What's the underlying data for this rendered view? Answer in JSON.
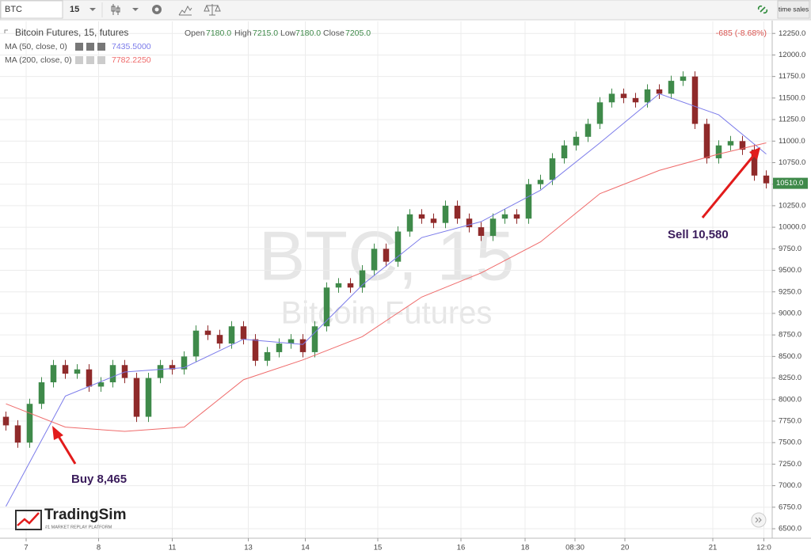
{
  "toolbar": {
    "symbol": "BTC",
    "interval": "15",
    "time_sales": "time sales"
  },
  "branding": {
    "name": "TradingSim",
    "tagline": "#1 MARKET REPLAY PLATFORM"
  },
  "chart_data": {
    "type": "candlestick",
    "title": "Bitcoin Futures, 15, futures",
    "watermark": "BTC, 15",
    "watermark_sub": "Bitcoin Futures",
    "ohlc_legend": {
      "open_label": "Open",
      "open": "7180.0",
      "high_label": "High",
      "high": "7215.0",
      "low_label": "Low",
      "low": "7180.0",
      "close_label": "Close",
      "close": "7205.0",
      "change": "-685 (-8.68%)"
    },
    "up_color": "#3f8a4a",
    "down_color": "#8f2a2a",
    "xlim": [
      -0.5,
      64.5
    ],
    "ylim": [
      6390,
      12390
    ],
    "grid": true,
    "x": [
      0,
      1,
      2,
      3,
      4,
      5,
      6,
      7,
      8,
      9,
      10,
      11,
      12,
      13,
      14,
      15,
      16,
      17,
      18,
      19,
      20,
      21,
      22,
      23,
      24,
      25,
      26,
      27,
      28,
      29,
      30,
      31,
      32,
      33,
      34,
      35,
      36,
      37,
      38,
      39,
      40,
      41,
      42,
      43,
      44,
      45,
      46,
      47,
      48,
      49,
      50,
      51,
      52,
      53,
      54,
      55,
      56,
      57,
      58,
      59,
      60,
      61,
      62,
      63,
      64
    ],
    "open": [
      7800,
      7700,
      7500,
      7950,
      8200,
      8400,
      8300,
      8350,
      8150,
      8200,
      8400,
      8250,
      7800,
      8250,
      8400,
      8350,
      8500,
      8800,
      8750,
      8650,
      8850,
      8700,
      8450,
      8550,
      8650,
      8700,
      8550,
      8850,
      9300,
      9350,
      9300,
      9500,
      9750,
      9600,
      9950,
      10150,
      10100,
      10050,
      10250,
      10100,
      10000,
      9900,
      10100,
      10150,
      10100,
      10500,
      10550,
      10800,
      10950,
      11050,
      11200,
      11450,
      11550,
      11500,
      11450,
      11600,
      11550,
      11700,
      11750,
      11200,
      10800,
      10950,
      11000,
      10900,
      10600
    ],
    "high": [
      7860,
      7760,
      8010,
      8260,
      8460,
      8460,
      8410,
      8410,
      8260,
      8460,
      8460,
      8310,
      8310,
      8460,
      8460,
      8560,
      8860,
      8860,
      8810,
      8910,
      8910,
      8760,
      8610,
      8710,
      8760,
      8760,
      8910,
      9360,
      9410,
      9410,
      9560,
      9810,
      9810,
      10010,
      10210,
      10210,
      10160,
      10310,
      10310,
      10160,
      10060,
      10160,
      10210,
      10210,
      10560,
      10610,
      10860,
      11010,
      11110,
      11260,
      11510,
      11610,
      11610,
      11560,
      11660,
      11660,
      11760,
      11810,
      11810,
      11260,
      11010,
      11060,
      11060,
      10960,
      10660
    ],
    "low": [
      7640,
      7440,
      7440,
      7890,
      8140,
      8240,
      8240,
      8090,
      8090,
      8140,
      8190,
      7740,
      7740,
      8190,
      8290,
      8290,
      8440,
      8690,
      8590,
      8590,
      8640,
      8390,
      8390,
      8490,
      8590,
      8490,
      8490,
      8790,
      9240,
      9240,
      9240,
      9440,
      9540,
      9540,
      9890,
      10040,
      9990,
      9990,
      10040,
      9940,
      9840,
      9840,
      10040,
      10040,
      10040,
      10440,
      10490,
      10740,
      10890,
      10990,
      11140,
      11390,
      11440,
      11390,
      11390,
      11490,
      11490,
      11640,
      11140,
      10740,
      10740,
      10890,
      10840,
      10540,
      10450
    ],
    "close": [
      7700,
      7500,
      7950,
      8200,
      8400,
      8300,
      8350,
      8150,
      8200,
      8400,
      8250,
      7800,
      8250,
      8400,
      8350,
      8500,
      8800,
      8750,
      8650,
      8850,
      8700,
      8450,
      8550,
      8650,
      8700,
      8550,
      8850,
      9300,
      9350,
      9300,
      9500,
      9750,
      9600,
      9950,
      10150,
      10100,
      10050,
      10250,
      10100,
      10000,
      9900,
      10100,
      10150,
      10100,
      10500,
      10550,
      10800,
      10950,
      11050,
      11200,
      11450,
      11550,
      11500,
      11450,
      11600,
      11550,
      11700,
      11750,
      11200,
      10800,
      10950,
      11000,
      10900,
      10600,
      10510
    ],
    "last_price_label": "10510.0",
    "series": [
      {
        "name": "MA (50, close, 0)",
        "value_label": "7435.5000",
        "color": "#7b7bea",
        "x": [
          0,
          5,
          10,
          15,
          20,
          25,
          30,
          35,
          40,
          45,
          50,
          55,
          60,
          64
        ],
        "values": [
          6760,
          8040,
          8320,
          8370,
          8700,
          8640,
          9330,
          9880,
          10065,
          10430,
          10980,
          11550,
          11305,
          10850
        ]
      },
      {
        "name": "MA (200, close, 0)",
        "value_label": "7782.2250",
        "color": "#ef6b6b",
        "x": [
          0,
          5,
          10,
          15,
          20,
          25,
          30,
          35,
          40,
          45,
          50,
          55,
          60,
          64
        ],
        "values": [
          7950,
          7680,
          7630,
          7680,
          8230,
          8460,
          8730,
          9190,
          9470,
          9830,
          10390,
          10660,
          10850,
          10980
        ]
      }
    ],
    "xticks": [
      {
        "value": 1.7,
        "label": "7"
      },
      {
        "value": 7.8,
        "label": "8"
      },
      {
        "value": 14.0,
        "label": "11"
      },
      {
        "value": 20.4,
        "label": "13"
      },
      {
        "value": 25.2,
        "label": "14"
      },
      {
        "value": 31.3,
        "label": "15"
      },
      {
        "value": 38.3,
        "label": "16"
      },
      {
        "value": 43.7,
        "label": "18"
      },
      {
        "value": 47.9,
        "label": "08:30"
      },
      {
        "value": 52.1,
        "label": "20"
      },
      {
        "value": 59.5,
        "label": "21"
      },
      {
        "value": 63.8,
        "label": "12:0"
      }
    ],
    "yticks": [
      {
        "value": 6500,
        "label": "6500.0"
      },
      {
        "value": 6750,
        "label": "6750.0"
      },
      {
        "value": 7000,
        "label": "7000.0"
      },
      {
        "value": 7250,
        "label": "7250.0"
      },
      {
        "value": 7500,
        "label": "7500.0"
      },
      {
        "value": 7750,
        "label": "7750.0"
      },
      {
        "value": 8000,
        "label": "8000.0"
      },
      {
        "value": 8250,
        "label": "8250.0"
      },
      {
        "value": 8500,
        "label": "8500.0"
      },
      {
        "value": 8750,
        "label": "8750.0"
      },
      {
        "value": 9000,
        "label": "9000.0"
      },
      {
        "value": 9250,
        "label": "9250.0"
      },
      {
        "value": 9500,
        "label": "9500.0"
      },
      {
        "value": 9750,
        "label": "9750.0"
      },
      {
        "value": 10000,
        "label": "10000.0"
      },
      {
        "value": 10250,
        "label": "10250.0"
      },
      {
        "value": 10500,
        "label": "10500.0"
      },
      {
        "value": 10750,
        "label": "10750.0"
      },
      {
        "value": 11000,
        "label": "11000.0"
      },
      {
        "value": 11250,
        "label": "11250.0"
      },
      {
        "value": 11500,
        "label": "11500.0"
      },
      {
        "value": 11750,
        "label": "11750.0"
      },
      {
        "value": 12000,
        "label": "12000.0"
      },
      {
        "value": 12250,
        "label": "12250.0"
      }
    ],
    "annotations": [
      "Buy 8,465",
      "Sell 10,580"
    ]
  }
}
